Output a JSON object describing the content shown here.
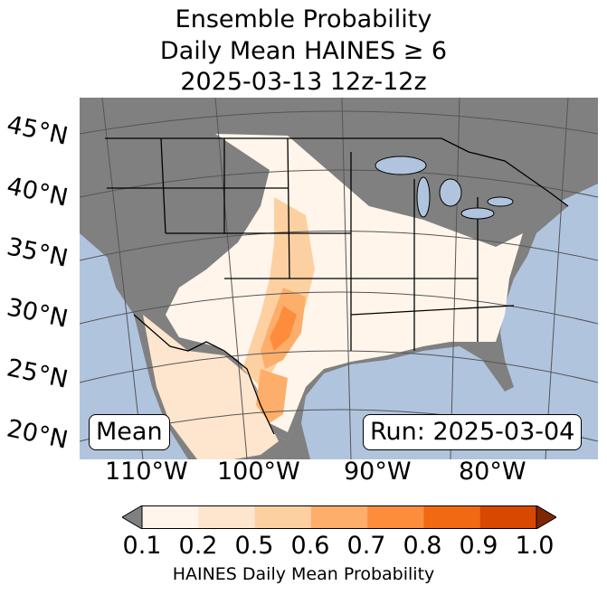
{
  "title": {
    "line1": "Ensemble Probability",
    "line2": "Daily Mean HAINES ≥ 6",
    "line3": "2025-03-13 12z-12z"
  },
  "map": {
    "lat_labels": [
      "45°N",
      "40°N",
      "35°N",
      "30°N",
      "25°N",
      "20°N"
    ],
    "lon_labels": [
      "110°W",
      "100°W",
      "90°W",
      "80°W"
    ],
    "mean_label": "Mean",
    "run_label": "Run: 2025-03-04",
    "colors": {
      "ocean": "#b0c4de",
      "land_below_threshold": "#808080",
      "graticule": "#555555",
      "borders": "#000000"
    }
  },
  "colorbar": {
    "label": "HAINES Daily Mean Probability",
    "ticks": [
      "0.1",
      "0.2",
      "0.5",
      "0.6",
      "0.7",
      "0.8",
      "0.9",
      "1.0"
    ],
    "under_color": "#808080",
    "over_color": "#7f2704",
    "bins": [
      "#fff5eb",
      "#fee6ce",
      "#fdd0a2",
      "#fdae6b",
      "#fd8d3c",
      "#f16913",
      "#d94801"
    ]
  }
}
